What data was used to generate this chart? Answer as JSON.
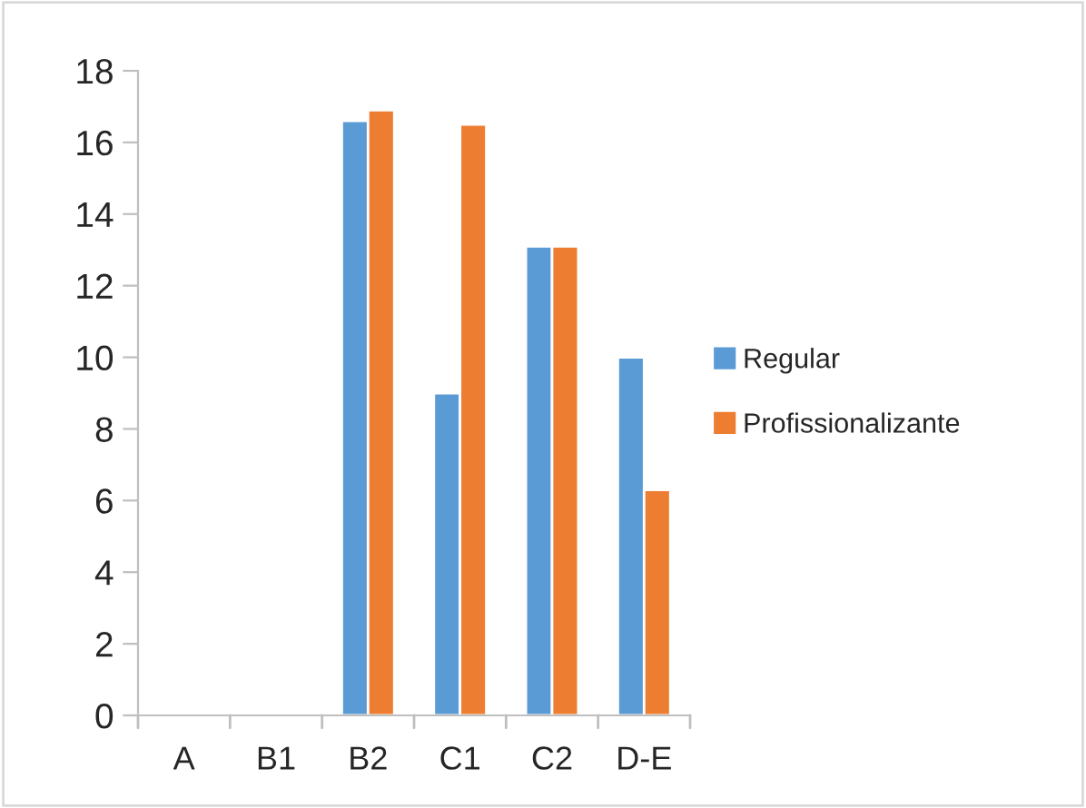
{
  "chart_data": {
    "type": "bar",
    "categories": [
      "A",
      "B1",
      "B2",
      "C1",
      "C2",
      "D-E"
    ],
    "series": [
      {
        "name": "Regular",
        "color": "#5b9bd5",
        "values": [
          null,
          null,
          16.6,
          9.0,
          13.1,
          10.0
        ]
      },
      {
        "name": "Profissionalizante",
        "color": "#ed7d31",
        "values": [
          null,
          null,
          16.9,
          16.5,
          13.1,
          6.3
        ]
      }
    ],
    "ylim": [
      0,
      18
    ],
    "yticks": [
      0,
      2,
      4,
      6,
      8,
      10,
      12,
      14,
      16,
      18
    ],
    "grid": false,
    "legend": "right"
  }
}
